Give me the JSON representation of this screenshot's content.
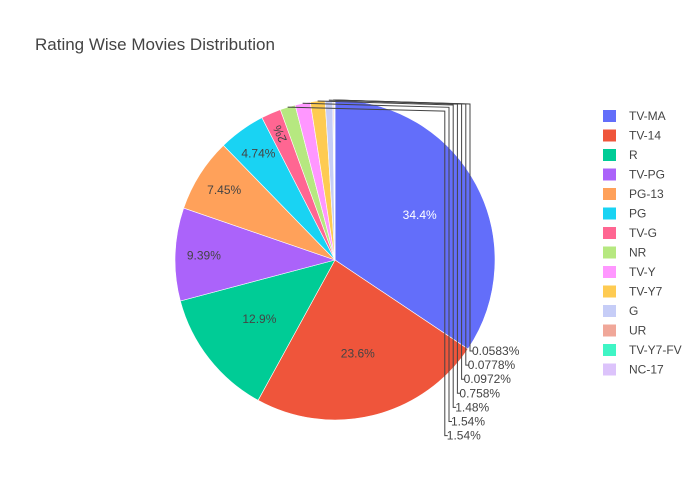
{
  "chart_data": {
    "type": "pie",
    "title": "Rating Wise Movies Distribution",
    "legend_position": "right",
    "slices": [
      {
        "label": "TV-MA",
        "value": 34.4,
        "text": "34.4%",
        "color": "#636efa",
        "text_color": "#ffffff"
      },
      {
        "label": "TV-14",
        "value": 23.6,
        "text": "23.6%",
        "color": "#ef553b",
        "text_color": "#444444"
      },
      {
        "label": "R",
        "value": 12.9,
        "text": "12.9%",
        "color": "#00cc96",
        "text_color": "#444444"
      },
      {
        "label": "TV-PG",
        "value": 9.39,
        "text": "9.39%",
        "color": "#ab63fa",
        "text_color": "#444444"
      },
      {
        "label": "PG-13",
        "value": 7.45,
        "text": "7.45%",
        "color": "#ffa15a",
        "text_color": "#444444"
      },
      {
        "label": "PG",
        "value": 4.74,
        "text": "4.74%",
        "color": "#19d3f3",
        "text_color": "#444444"
      },
      {
        "label": "TV-G",
        "value": 2.0,
        "text": "2%",
        "color": "#ff6692",
        "text_color": "#444444"
      },
      {
        "label": "NR",
        "value": 1.54,
        "text": "1.54%",
        "color": "#b6e880",
        "text_color": "#444444"
      },
      {
        "label": "TV-Y",
        "value": 1.54,
        "text": "1.54%",
        "color": "#ff97ff",
        "text_color": "#444444"
      },
      {
        "label": "TV-Y7",
        "value": 1.48,
        "text": "1.48%",
        "color": "#fecb52",
        "text_color": "#444444"
      },
      {
        "label": "G",
        "value": 0.758,
        "text": "0.758%",
        "color": "#c6cdf7",
        "text_color": "#444444"
      },
      {
        "label": "UR",
        "value": 0.0972,
        "text": "0.0972%",
        "color": "#f0a799",
        "text_color": "#444444"
      },
      {
        "label": "TV-Y7-FV",
        "value": 0.0778,
        "text": "0.0778%",
        "color": "#3ff5c5",
        "text_color": "#444444"
      },
      {
        "label": "NC-17",
        "value": 0.0583,
        "text": "0.0583%",
        "color": "#dcc3fb",
        "text_color": "#444444"
      }
    ]
  }
}
